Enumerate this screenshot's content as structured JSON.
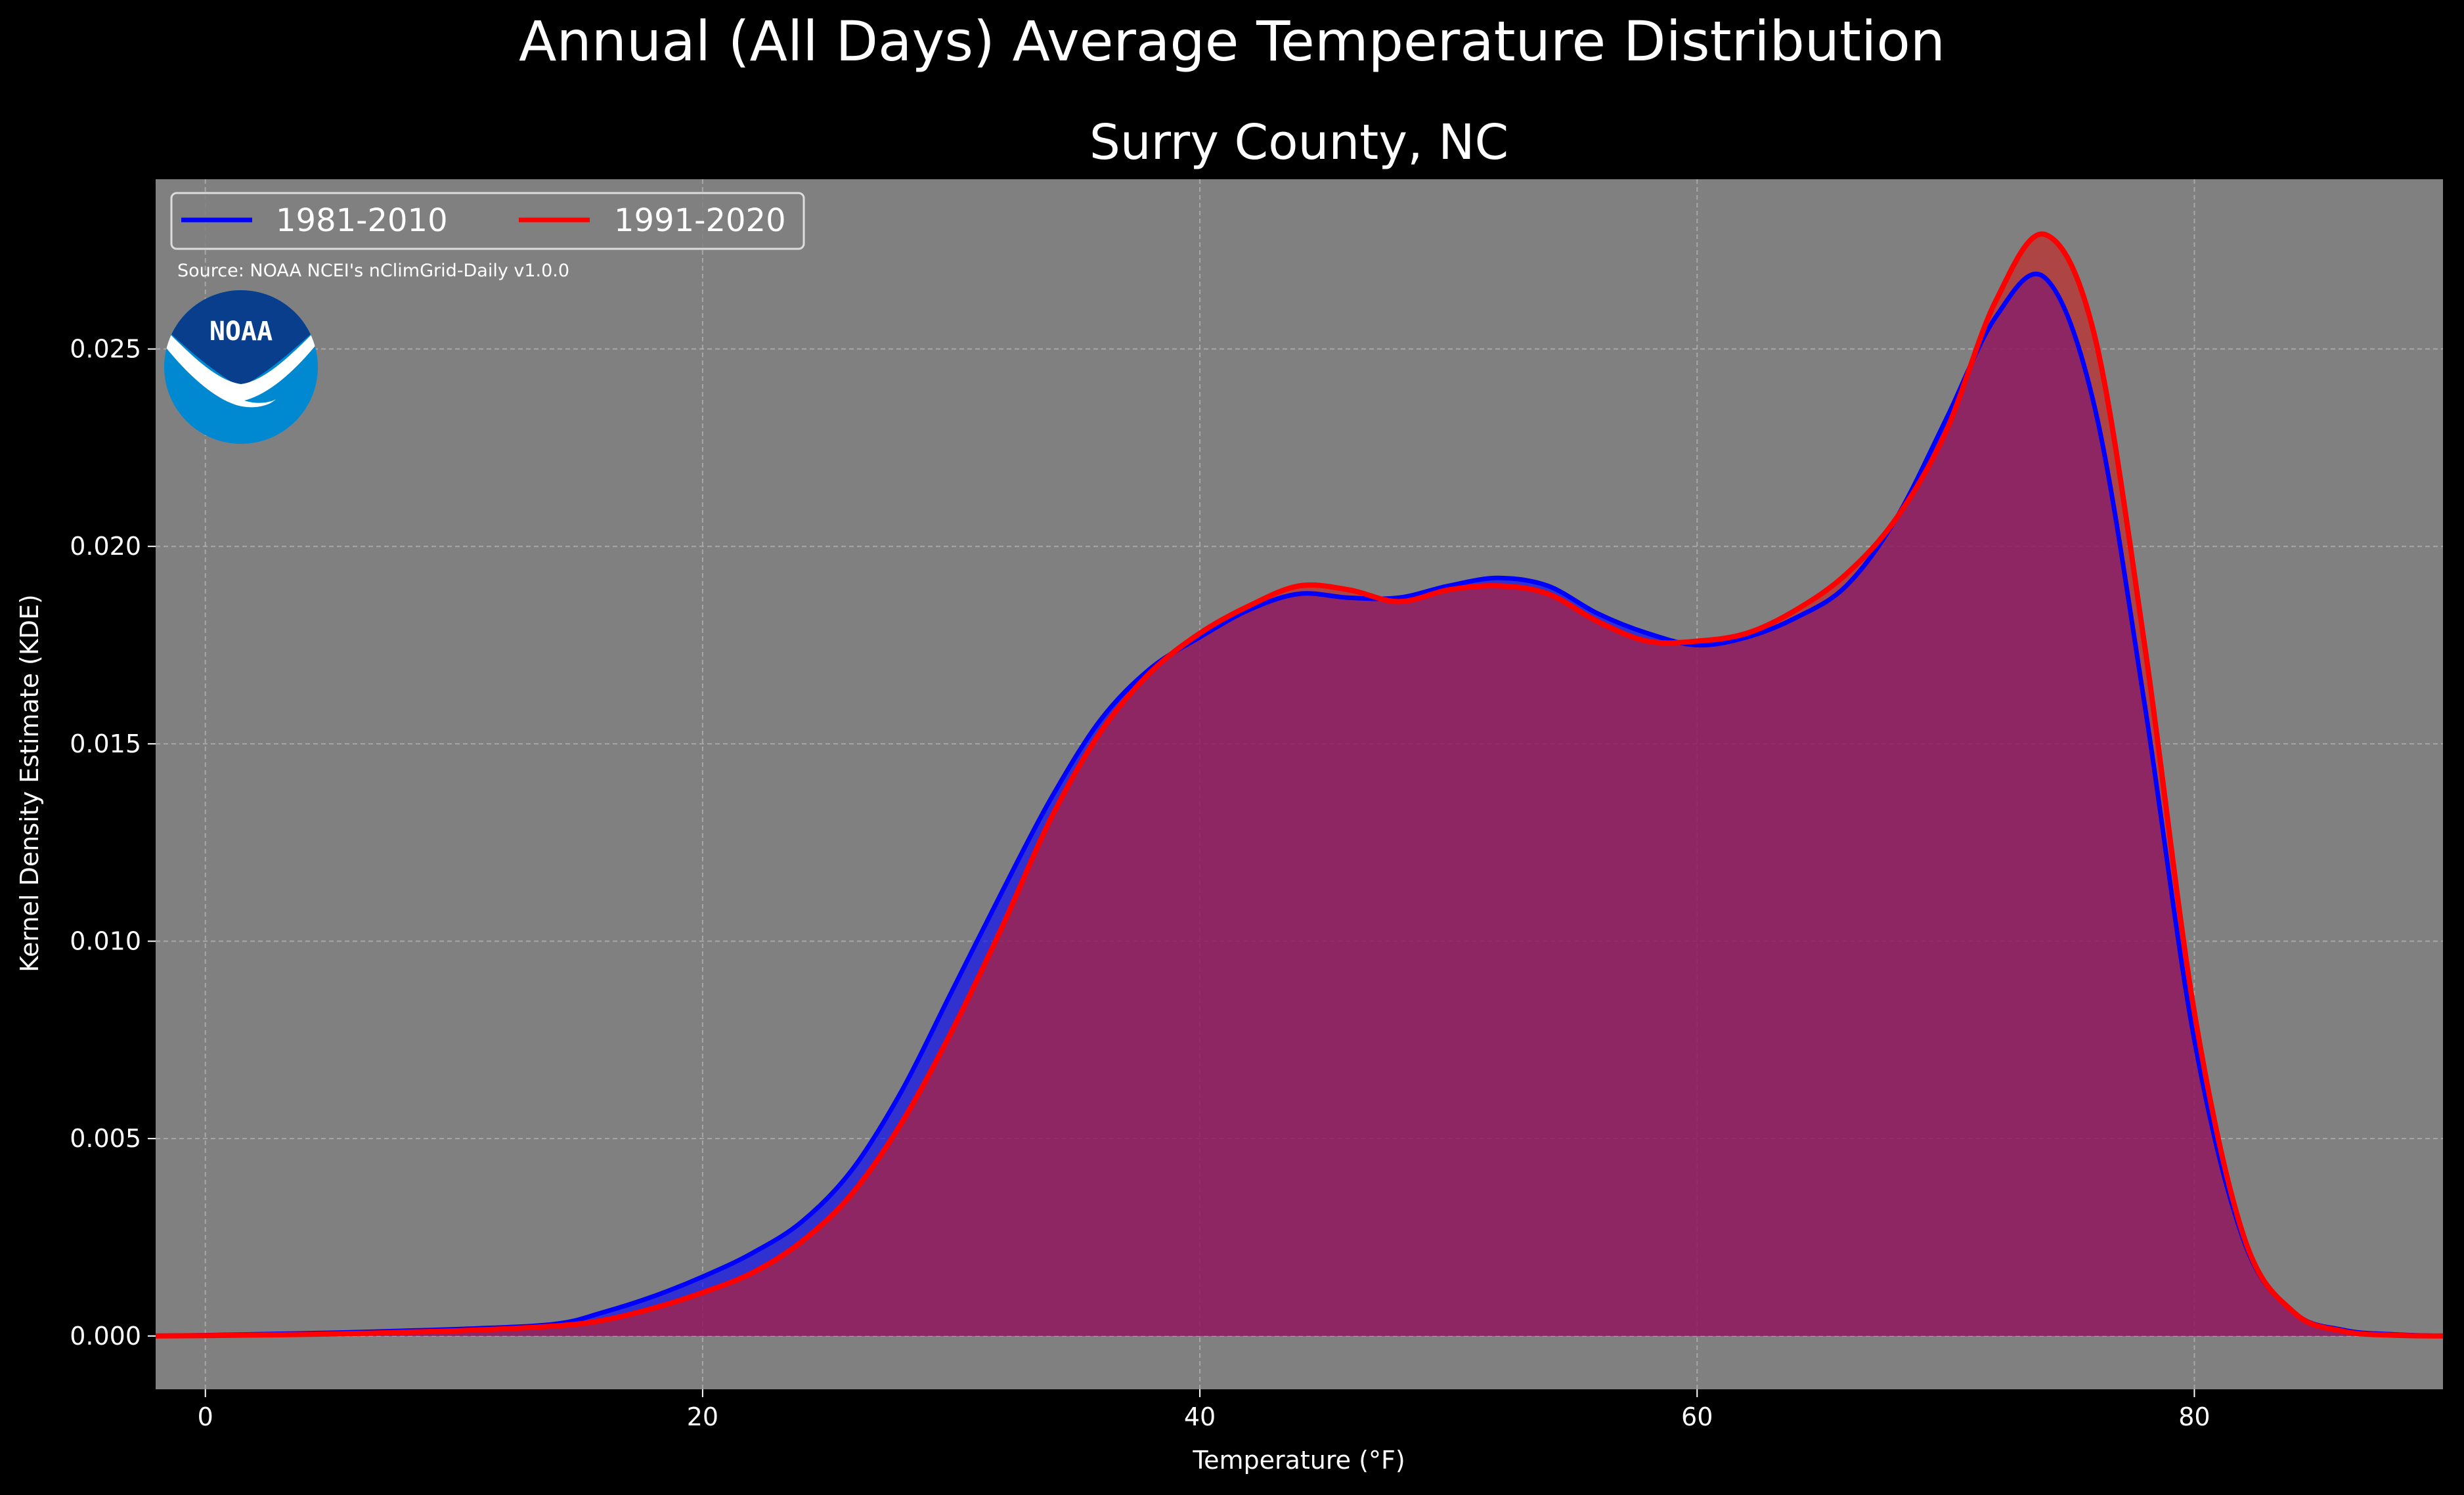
{
  "figure": {
    "suptitle": "Annual (All Days) Average Temperature Distribution",
    "background": "#000000",
    "plot_background": "#808080"
  },
  "chart_data": {
    "type": "area",
    "title": "Surry County, NC",
    "xlabel": "Temperature ($^\\circ$F)",
    "xlabel_display": "Temperature (°F)",
    "ylabel": "Kernel Density Estimate (KDE)",
    "xlim": [
      -2,
      90
    ],
    "ylim": [
      -0.00135,
      0.0293
    ],
    "xticks": [
      0,
      20,
      40,
      60,
      80
    ],
    "xtick_labels": [
      "0",
      "20",
      "40",
      "60",
      "80"
    ],
    "yticks": [
      0.0,
      0.005,
      0.01,
      0.015,
      0.02,
      0.025
    ],
    "ytick_labels": [
      "0.000",
      "0.005",
      "0.010",
      "0.015",
      "0.020",
      "0.025"
    ],
    "grid": true,
    "legend_position": "top-left",
    "series": [
      {
        "name": "1981-2010",
        "color": "#0000ff",
        "fill_color": "#0000ff",
        "x": [
          -2,
          0,
          5,
          10,
          14,
          16,
          18,
          20,
          22,
          24,
          26,
          28,
          30,
          32,
          34,
          36,
          38,
          40,
          42,
          44,
          46,
          48,
          50,
          52,
          54,
          56,
          58,
          60,
          62,
          64,
          66,
          68,
          70,
          72,
          74,
          76,
          78,
          80,
          82,
          84,
          86,
          88,
          90
        ],
        "y": [
          0.0,
          2e-05,
          8e-05,
          0.00017,
          0.0003,
          0.0006,
          0.001,
          0.0015,
          0.0021,
          0.0029,
          0.0042,
          0.0062,
          0.0087,
          0.0112,
          0.0136,
          0.0156,
          0.0169,
          0.0177,
          0.0184,
          0.0188,
          0.0187,
          0.0187,
          0.019,
          0.0192,
          0.019,
          0.0183,
          0.0178,
          0.0175,
          0.0177,
          0.0182,
          0.019,
          0.0207,
          0.0232,
          0.0258,
          0.0268,
          0.0235,
          0.016,
          0.0075,
          0.0024,
          0.0006,
          0.00015,
          4e-05,
          0.0
        ]
      },
      {
        "name": "1991-2020",
        "color": "#ff0000",
        "fill_color": "#c82020",
        "x": [
          -2,
          0,
          5,
          10,
          14,
          16,
          18,
          20,
          22,
          24,
          26,
          28,
          30,
          32,
          34,
          36,
          38,
          40,
          42,
          44,
          46,
          48,
          50,
          52,
          54,
          56,
          58,
          60,
          62,
          64,
          66,
          68,
          70,
          72,
          74,
          76,
          78,
          80,
          82,
          84,
          86,
          88,
          90
        ],
        "y": [
          0.0,
          1e-05,
          5e-05,
          0.00013,
          0.00025,
          0.0004,
          0.0007,
          0.0011,
          0.0016,
          0.0024,
          0.0036,
          0.0054,
          0.0077,
          0.0103,
          0.0131,
          0.0153,
          0.0168,
          0.0178,
          0.0185,
          0.019,
          0.0189,
          0.0186,
          0.0189,
          0.019,
          0.0188,
          0.0181,
          0.0176,
          0.0176,
          0.0178,
          0.0184,
          0.0193,
          0.0207,
          0.0229,
          0.0262,
          0.0279,
          0.0253,
          0.0175,
          0.0082,
          0.0025,
          0.0006,
          0.00012,
          2e-05,
          0.0
        ]
      }
    ],
    "source_note": "Source: NOAA NCEI's nClimGrid-Daily v1.0.0",
    "logo": {
      "text": "NOAA",
      "outer_color": "#0088d1",
      "inner_color": "#083e8c",
      "bird_color": "#ffffff"
    }
  }
}
